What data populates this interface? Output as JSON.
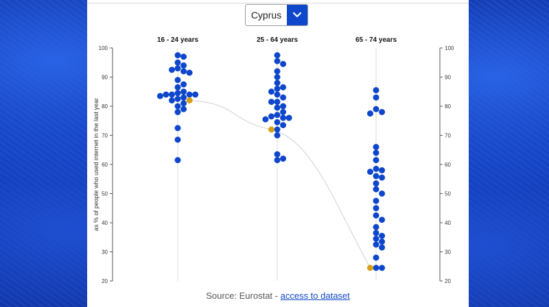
{
  "selector": {
    "value": "Cyprus",
    "icon": "chevron-down-icon"
  },
  "colors": {
    "dot": "#0e47cb",
    "highlight": "#d4a017",
    "curve": "#d0d0d0",
    "axis": "#555555"
  },
  "chart_data": {
    "type": "scatter",
    "title": "",
    "ylabel": "as % of people who used internet in the last year",
    "ylim": [
      20,
      100
    ],
    "yticks": [
      20,
      30,
      40,
      50,
      60,
      70,
      80,
      90,
      100
    ],
    "highlight_country": "Cyprus",
    "categories": [
      "16 - 24 years",
      "25 - 64 years",
      "65 - 74 years"
    ],
    "groups": [
      {
        "label": "16 - 24 years",
        "values": [
          97.5,
          97,
          95,
          94,
          93,
          92.5,
          92,
          91.5,
          89,
          87.5,
          86.5,
          85,
          84.5,
          84,
          84,
          84,
          84,
          83.5,
          83,
          82.5,
          82,
          81,
          80,
          79,
          78,
          72.5,
          68.5,
          61.5
        ],
        "highlight": 82
      },
      {
        "label": "25 - 64 years",
        "values": [
          97.5,
          95.5,
          94.5,
          92,
          90,
          88,
          86.5,
          86,
          85,
          84,
          83,
          81.5,
          81.5,
          80,
          79.5,
          78,
          77,
          76.5,
          76,
          76,
          75.5,
          74.5,
          73.5,
          72,
          70,
          63.5,
          62,
          61.5
        ],
        "highlight": 72
      },
      {
        "label": "65 - 74 years",
        "values": [
          85.5,
          83,
          79,
          78,
          77.5,
          66,
          64,
          61.5,
          58.5,
          58,
          57.5,
          56,
          55.5,
          53.5,
          51.5,
          50,
          47.5,
          45,
          42.5,
          41,
          38.5,
          36.5,
          35.5,
          34.5,
          33.5,
          32.5,
          31.5,
          28,
          24.5,
          24.5
        ],
        "highlight": 24.5
      }
    ]
  },
  "footer": {
    "source_prefix": "Source: Eurostat - ",
    "link_text": "access to dataset"
  }
}
